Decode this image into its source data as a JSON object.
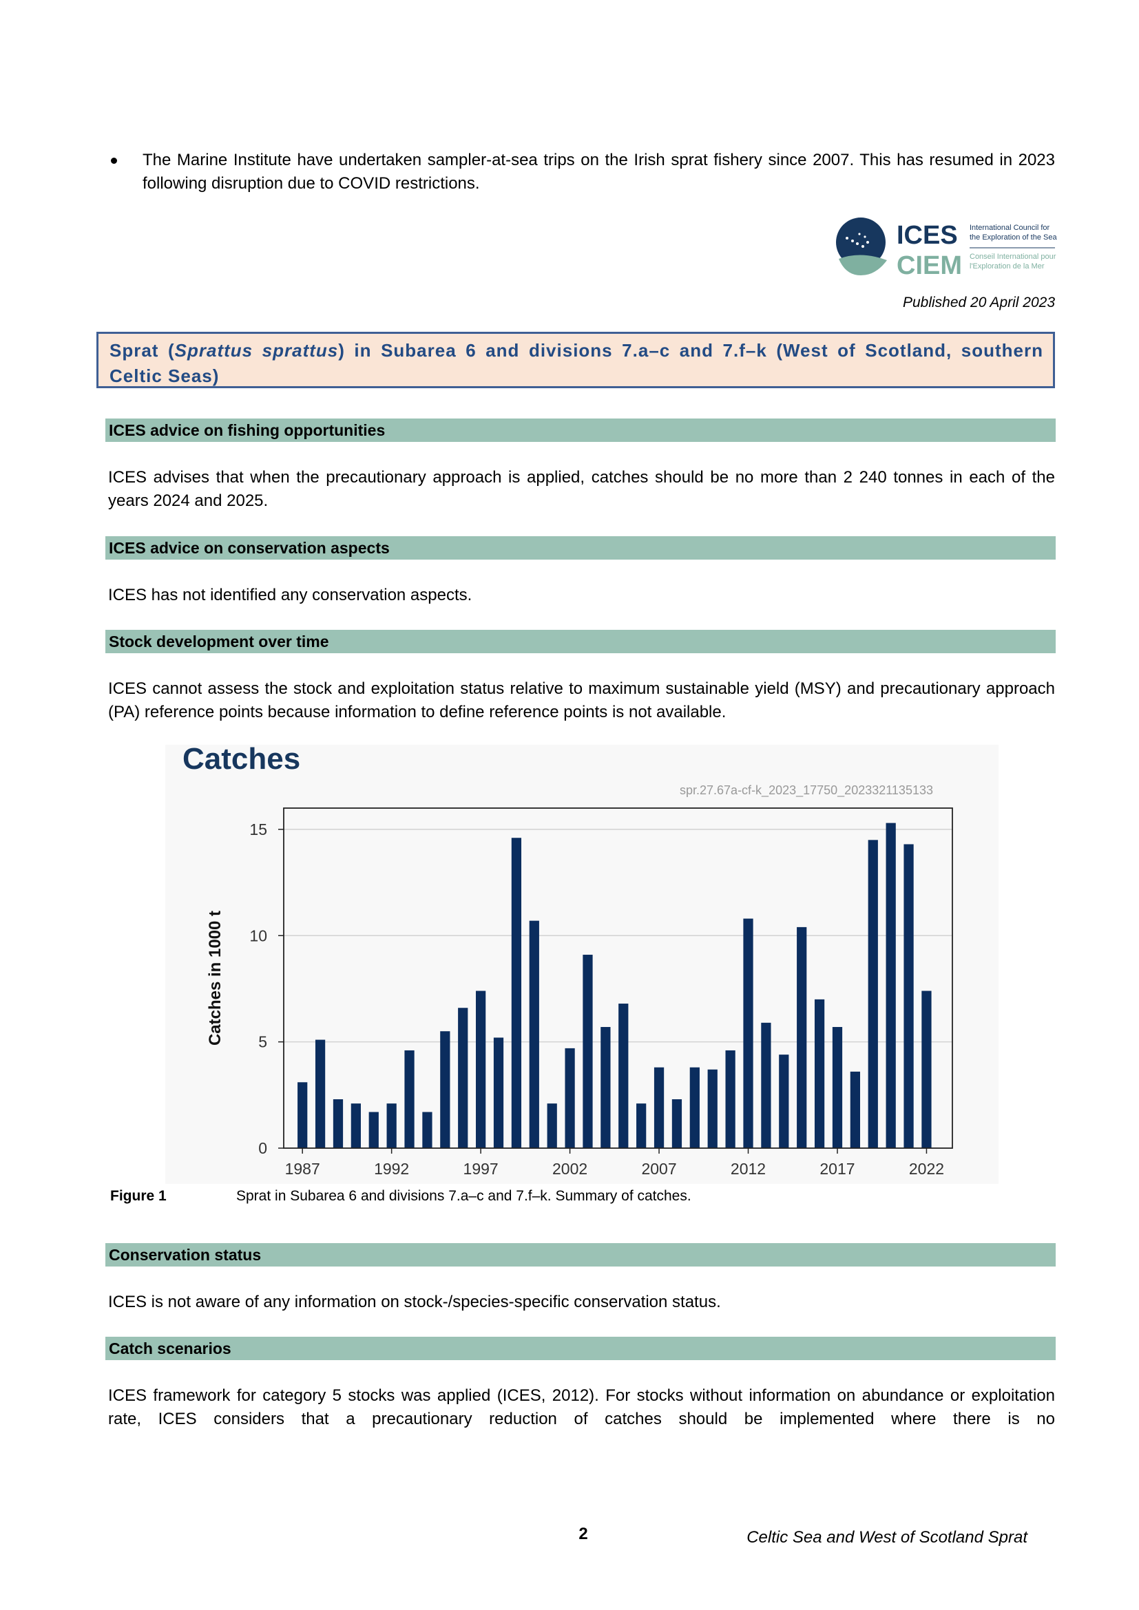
{
  "bullet": {
    "text": "The Marine Institute have undertaken sampler-at-sea trips on the Irish sprat fishery since 2007. This has resumed in 2023 following disruption due to COVID restrictions."
  },
  "logo": {
    "acronym_top": "ICES",
    "acronym_bottom": "CIEM",
    "line1": "International Council for",
    "line2": "the Exploration of the Sea",
    "line3": "Conseil International pour",
    "line4": "l'Exploration de la Mer"
  },
  "published": "Published 20 April 2023",
  "title": {
    "prefix": "Sprat (",
    "species": "Sprattus sprattus",
    "suffix": ") in Subarea 6 and divisions 7.a–c and 7.f–k (West of Scotland, southern Celtic Seas)"
  },
  "sections": {
    "fishing": {
      "heading": "ICES advice on fishing opportunities",
      "text": "ICES advises that when the precautionary approach is applied, catches should be no more than 2 240 tonnes in each of the years 2024 and 2025."
    },
    "conservation_aspects": {
      "heading": "ICES advice on conservation aspects",
      "text": "ICES has not identified any conservation aspects."
    },
    "stock_development": {
      "heading": "Stock development over time",
      "text": "ICES cannot assess the stock and exploitation status relative to maximum sustainable yield (MSY) and precautionary approach (PA) reference points because information to define reference points is not available."
    },
    "conservation_status": {
      "heading": "Conservation status",
      "text": "ICES is not aware of any information on stock-/species-specific conservation status."
    },
    "catch_scenarios": {
      "heading": "Catch scenarios",
      "text": "ICES framework for category 5 stocks was applied (ICES, 2012). For stocks without information on abundance or exploitation rate, ICES considers that a precautionary reduction of catches should be implemented where there is no"
    }
  },
  "chart_data": {
    "type": "bar",
    "title": "Catches",
    "id_label": "spr.27.67a-cf-k_2023_17750_2023321135133",
    "ylabel": "Catches in 1000 t",
    "xlabel": "",
    "ylim": [
      0,
      16
    ],
    "yticks": [
      0,
      5,
      10,
      15
    ],
    "xticks": [
      1987,
      1992,
      1997,
      2002,
      2007,
      2012,
      2017,
      2022
    ],
    "grid": true,
    "bar_color": "#0b2d5e",
    "years": [
      1987,
      1988,
      1989,
      1990,
      1991,
      1992,
      1993,
      1994,
      1995,
      1996,
      1997,
      1998,
      1999,
      2000,
      2001,
      2002,
      2003,
      2004,
      2005,
      2006,
      2007,
      2008,
      2009,
      2010,
      2011,
      2012,
      2013,
      2014,
      2015,
      2016,
      2017,
      2018,
      2019,
      2020,
      2021,
      2022
    ],
    "values": [
      3.1,
      5.1,
      2.3,
      2.1,
      1.7,
      2.1,
      4.6,
      1.7,
      5.5,
      6.6,
      7.4,
      5.2,
      14.6,
      10.7,
      2.1,
      4.7,
      9.1,
      5.7,
      6.8,
      2.1,
      3.8,
      2.3,
      3.8,
      3.7,
      4.6,
      10.8,
      5.9,
      4.4,
      10.4,
      7.0,
      5.7,
      3.6,
      14.5,
      15.3,
      14.3,
      7.4
    ]
  },
  "figure": {
    "label": "Figure 1",
    "caption": "Sprat in Subarea 6 and divisions 7.a–c and 7.f–k. Summary of catches."
  },
  "footer": {
    "page_number": "2",
    "title": "Celtic Sea and West of Scotland Sprat"
  }
}
